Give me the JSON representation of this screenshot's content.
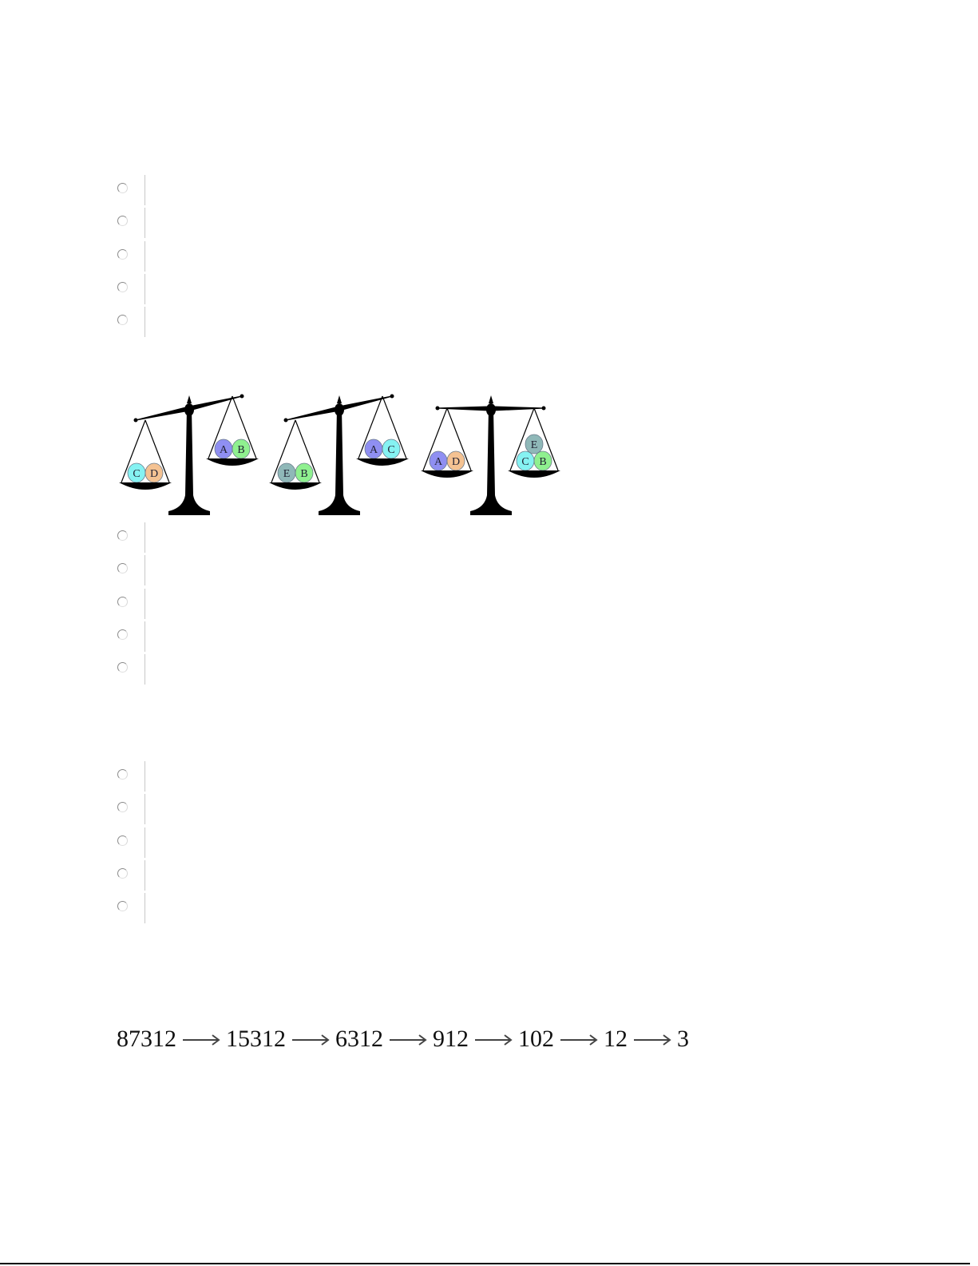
{
  "questions": [
    {
      "options": 5
    },
    {
      "options": 5
    },
    {
      "options": 5
    }
  ],
  "balance_scales": {
    "colors": {
      "A": "#8f8ff2",
      "B": "#8ff08f",
      "C": "#85f2f2",
      "D": "#f4c292",
      "E": "#8fb8b8"
    },
    "scales": [
      {
        "tilt": "left-down",
        "left": [
          "C",
          "D"
        ],
        "right": [
          "A",
          "B"
        ]
      },
      {
        "tilt": "left-down",
        "left": [
          "E",
          "B"
        ],
        "right": [
          "A",
          "C"
        ]
      },
      {
        "tilt": "level",
        "left": [
          "A",
          "D"
        ],
        "right": [
          "C",
          "B",
          "E"
        ]
      }
    ]
  },
  "sequence": [
    "87312",
    "15312",
    "6312",
    "912",
    "102",
    "12",
    "3"
  ]
}
